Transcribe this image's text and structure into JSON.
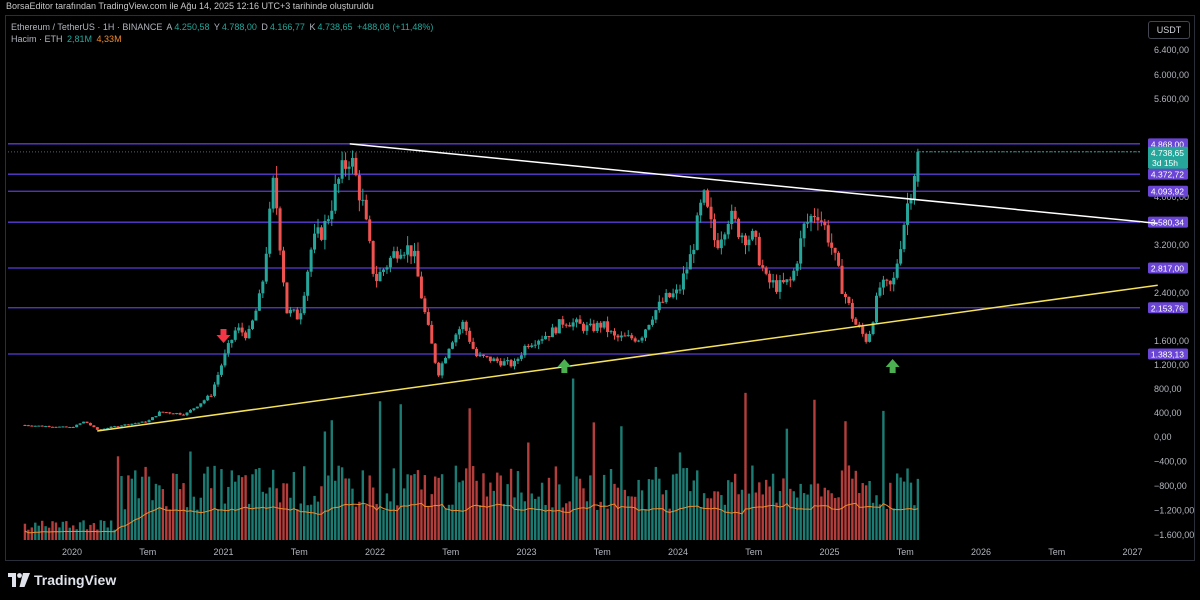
{
  "header": {
    "attribution": "BorsaEditor tarafından TradingView.com ile Ağu 14, 2025 12:16 UTC+3 tarihinde oluşturuldu"
  },
  "legend": {
    "symbol": "Ethereum / TetherUS · 1H · BINANCE",
    "open_key": "A",
    "open": "4.250,58",
    "high_key": "Y",
    "high": "4.788,00",
    "low_key": "D",
    "low": "4.166,77",
    "close_key": "K",
    "close": "4.738,65",
    "change": "+488,08 (+11,48%)",
    "volume_label": "Hacim · ETH",
    "volume": "2,81M",
    "volume_ma": "4,33M"
  },
  "currency_button": "USDT",
  "footer": {
    "brand": "TradingView"
  },
  "colors": {
    "up": "#26a69a",
    "down": "#ef5350",
    "horizontal_line": "#5b3bd9",
    "label_bg": "#6b45d6",
    "last_price_bg": "#26a69a",
    "resistance_trendline": "#ffffff",
    "support_trendline": "#f5e15a",
    "volume_ma": "#f08a2b",
    "arrow_up": "#4caf50",
    "arrow_down": "#f23645"
  },
  "chart_data": {
    "type": "candlestick",
    "price_axis_ticks": [
      "6.400,00",
      "6.000,00",
      "5.600,00",
      "4.000,00",
      "3.200,00",
      "2.400,00",
      "1.600,00",
      "1.200,00",
      "800,00",
      "400,00",
      "0,00",
      "−400,00",
      "−800,00",
      "−1.200,00",
      "−1.600,00"
    ],
    "time_axis_ticks": [
      "2020",
      "Tem",
      "2021",
      "Tem",
      "2022",
      "Tem",
      "2023",
      "Tem",
      "2024",
      "Tem",
      "2025",
      "Tem",
      "2026",
      "Tem",
      "2027"
    ],
    "horizontal_levels": [
      {
        "price": 4868.0,
        "label": "4.868,00"
      },
      {
        "price": 4372.72,
        "label": "4.372,72"
      },
      {
        "price": 4093.92,
        "label": "4.093,92"
      },
      {
        "price": 3580.34,
        "label": "3.580,34"
      },
      {
        "price": 2817.0,
        "label": "2.817,00"
      },
      {
        "price": 2153.76,
        "label": "2.153,76"
      },
      {
        "price": 1383.13,
        "label": "1.383,13"
      }
    ],
    "last_price": {
      "price": 4738.65,
      "label": "4.738,65",
      "countdown": "3d 15h"
    },
    "trendlines": [
      {
        "name": "resistance",
        "start": {
          "x": "2021-11",
          "y": 4868
        },
        "end": {
          "x": "2027-03",
          "y": 3560
        }
      },
      {
        "name": "support",
        "start": {
          "x": "2020-03",
          "y": 100
        },
        "end": {
          "x": "2027-03",
          "y": 2530
        }
      }
    ],
    "arrows": [
      {
        "direction": "down",
        "x": "2021-01",
        "y": 1600
      },
      {
        "direction": "up",
        "x": "2023-04",
        "y": 1300
      },
      {
        "direction": "up",
        "x": "2025-06",
        "y": 1300
      }
    ],
    "price_path": [
      [
        "2019-09",
        200
      ],
      [
        "2019-11",
        180
      ],
      [
        "2020-01",
        160
      ],
      [
        "2020-02",
        260
      ],
      [
        "2020-03",
        120
      ],
      [
        "2020-05",
        200
      ],
      [
        "2020-07",
        260
      ],
      [
        "2020-08",
        420
      ],
      [
        "2020-10",
        380
      ],
      [
        "2020-12",
        700
      ],
      [
        "2021-01",
        1300
      ],
      [
        "2021-02",
        1800
      ],
      [
        "2021-03",
        1700
      ],
      [
        "2021-04",
        2400
      ],
      [
        "2021-05",
        4300
      ],
      [
        "2021-06",
        2100
      ],
      [
        "2021-07",
        2000
      ],
      [
        "2021-08",
        3200
      ],
      [
        "2021-09",
        3500
      ],
      [
        "2021-10",
        4200
      ],
      [
        "2021-11",
        4700
      ],
      [
        "2021-12",
        3900
      ],
      [
        "2022-01",
        2600
      ],
      [
        "2022-03",
        3200
      ],
      [
        "2022-04",
        3100
      ],
      [
        "2022-05",
        2000
      ],
      [
        "2022-06",
        1050
      ],
      [
        "2022-07",
        1600
      ],
      [
        "2022-08",
        1900
      ],
      [
        "2022-09",
        1350
      ],
      [
        "2022-11",
        1250
      ],
      [
        "2022-12",
        1200
      ],
      [
        "2023-01",
        1550
      ],
      [
        "2023-03",
        1750
      ],
      [
        "2023-04",
        1950
      ],
      [
        "2023-06",
        1800
      ],
      [
        "2023-07",
        1880
      ],
      [
        "2023-08",
        1650
      ],
      [
        "2023-10",
        1650
      ],
      [
        "2023-11",
        2050
      ],
      [
        "2023-12",
        2300
      ],
      [
        "2024-01",
        2400
      ],
      [
        "2024-02",
        3000
      ],
      [
        "2024-03",
        4000
      ],
      [
        "2024-04",
        3200
      ],
      [
        "2024-05",
        3700
      ],
      [
        "2024-06",
        3400
      ],
      [
        "2024-07",
        3300
      ],
      [
        "2024-08",
        2600
      ],
      [
        "2024-09",
        2500
      ],
      [
        "2024-10",
        2600
      ],
      [
        "2024-11",
        3500
      ],
      [
        "2024-12",
        3800
      ],
      [
        "2025-01",
        3300
      ],
      [
        "2025-02",
        2500
      ],
      [
        "2025-03",
        1900
      ],
      [
        "2025-04",
        1600
      ],
      [
        "2025-05",
        2500
      ],
      [
        "2025-06",
        2500
      ],
      [
        "2025-07",
        3700
      ],
      [
        "2025-08",
        4740
      ]
    ]
  }
}
